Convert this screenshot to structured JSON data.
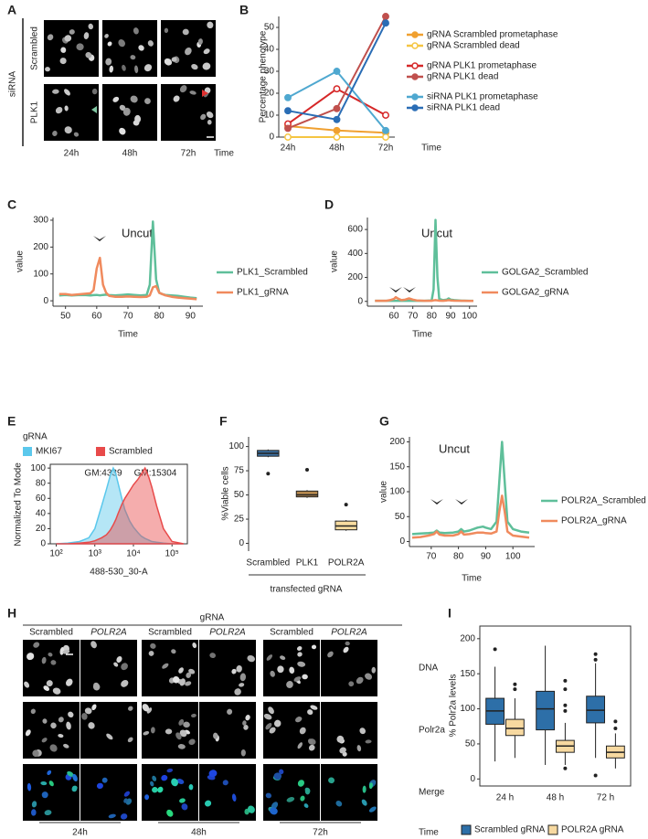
{
  "chart_data": [
    {
      "panel": "B",
      "type": "line",
      "categories": [
        "24h",
        "48h",
        "72h"
      ],
      "xlabel": "Time",
      "ylabel": "Percentage phenotype",
      "ylim": [
        0,
        55
      ],
      "yticks": [
        0,
        10,
        20,
        30,
        40,
        50
      ],
      "series": [
        {
          "name": "gRNA Scrambled prometaphase",
          "color": "#f0a030",
          "marker": "filled",
          "values": [
            5,
            3,
            2
          ]
        },
        {
          "name": "gRNA Scrambled dead",
          "color": "#f5c542",
          "marker": "open",
          "values": [
            0,
            0,
            0
          ]
        },
        {
          "name": "gRNA PLK1 prometaphase",
          "color": "#d62728",
          "marker": "open",
          "values": [
            6,
            22,
            10
          ]
        },
        {
          "name": "gRNA PLK1 dead",
          "color": "#c0504d",
          "marker": "filled",
          "values": [
            4,
            13,
            55
          ]
        },
        {
          "name": "siRNA PLK1 prometaphase",
          "color": "#4fa8d0",
          "marker": "filled",
          "values": [
            18,
            30,
            3
          ]
        },
        {
          "name": "siRNA PLK1 dead",
          "color": "#2a6db5",
          "marker": "filled",
          "values": [
            12,
            8,
            52
          ]
        }
      ]
    },
    {
      "panel": "C",
      "type": "line",
      "xlabel": "Time",
      "ylabel": "value",
      "annotations": [
        "Uncut"
      ],
      "xlim": [
        46,
        94
      ],
      "xticks": [
        50,
        60,
        70,
        80,
        90
      ],
      "ylim": [
        -20,
        310
      ],
      "yticks": [
        0,
        100,
        200,
        300
      ],
      "x": [
        48,
        50,
        52,
        54,
        56,
        58,
        59,
        60,
        61,
        62,
        63,
        64,
        66,
        68,
        70,
        72,
        74,
        76,
        77,
        78,
        79,
        80,
        81,
        82,
        84,
        86,
        88,
        90,
        92
      ],
      "series": [
        {
          "name": "PLK1_Scrambled",
          "color": "#5fbf9a",
          "values": [
            20,
            22,
            20,
            21,
            22,
            20,
            21,
            22,
            20,
            22,
            23,
            21,
            20,
            22,
            24,
            22,
            20,
            22,
            60,
            295,
            80,
            30,
            25,
            22,
            20,
            18,
            15,
            12,
            10
          ]
        },
        {
          "name": "PLK1_gRNA",
          "color": "#f08a5d",
          "values": [
            25,
            25,
            22,
            24,
            26,
            28,
            40,
            120,
            160,
            60,
            30,
            18,
            15,
            15,
            16,
            15,
            14,
            15,
            20,
            50,
            55,
            30,
            25,
            20,
            15,
            12,
            10,
            8,
            6
          ]
        }
      ]
    },
    {
      "panel": "D",
      "type": "line",
      "xlabel": "Time",
      "ylabel": "value",
      "annotations": [
        "Uncut"
      ],
      "xlim": [
        46,
        104
      ],
      "xticks": [
        60,
        70,
        80,
        90,
        100
      ],
      "ylim": [
        -40,
        700
      ],
      "yticks": [
        0,
        200,
        400,
        600
      ],
      "x": [
        50,
        52,
        54,
        56,
        58,
        60,
        61,
        62,
        64,
        66,
        68,
        70,
        72,
        76,
        80,
        81,
        82,
        83,
        84,
        86,
        88,
        89,
        90,
        92,
        96,
        100,
        102
      ],
      "series": [
        {
          "name": "GOLGA2_Scrambled",
          "color": "#5fbf9a",
          "values": [
            5,
            5,
            5,
            5,
            5,
            5,
            5,
            5,
            5,
            5,
            5,
            5,
            5,
            5,
            8,
            100,
            680,
            200,
            20,
            10,
            15,
            25,
            15,
            10,
            6,
            5,
            5
          ]
        },
        {
          "name": "GOLGA2_gRNA",
          "color": "#f08a5d",
          "values": [
            5,
            5,
            5,
            5,
            10,
            20,
            35,
            25,
            10,
            15,
            25,
            15,
            8,
            5,
            5,
            8,
            10,
            8,
            6,
            5,
            8,
            10,
            8,
            6,
            5,
            4,
            4
          ]
        }
      ]
    },
    {
      "panel": "E",
      "type": "area",
      "xscale": "log",
      "xlabel": "488-530_30-A",
      "ylabel": "Normalized To Mode",
      "legend_title": "gRNA",
      "annotations": [
        "GM:4339",
        "GM:15304"
      ],
      "xlim": [
        70,
        250000
      ],
      "xticks": [
        {
          "value": 100,
          "label": "10²"
        },
        {
          "value": 1000,
          "label": "10³"
        },
        {
          "value": 10000,
          "label": "10⁴"
        },
        {
          "value": 100000,
          "label": "10⁵"
        }
      ],
      "ylim": [
        0,
        105
      ],
      "yticks": [
        0,
        20,
        40,
        60,
        80,
        100
      ],
      "x": [
        100,
        200,
        400,
        700,
        1000,
        1500,
        2000,
        2500,
        3000,
        3500,
        4000,
        5000,
        6000,
        8000,
        10000,
        13000,
        16000,
        20000,
        25000,
        30000,
        40000,
        60000,
        100000,
        200000
      ],
      "series": [
        {
          "name": "MKI67",
          "color": "#5bc8ec",
          "values": [
            0,
            1,
            3,
            8,
            20,
            50,
            72,
            90,
            100,
            92,
            80,
            60,
            45,
            30,
            22,
            15,
            10,
            7,
            5,
            3,
            2,
            1,
            0,
            0
          ]
        },
        {
          "name": "Scrambled",
          "color": "#e84a4a",
          "values": [
            0,
            0,
            1,
            2,
            4,
            8,
            12,
            18,
            25,
            32,
            40,
            52,
            60,
            70,
            78,
            85,
            92,
            100,
            88,
            75,
            50,
            20,
            3,
            0
          ]
        }
      ]
    },
    {
      "panel": "F",
      "type": "box",
      "xlabel": "transfected gRNA",
      "ylabel": "%Viable cells",
      "categories": [
        "Scrambled",
        "PLK1",
        "POLR2A"
      ],
      "ylim": [
        -8,
        110
      ],
      "yticks": [
        0,
        25,
        50,
        75,
        100
      ],
      "boxes": [
        {
          "color": "#3b6fa0",
          "min": 89,
          "q1": 90,
          "median": 93,
          "q3": 96,
          "max": 97,
          "outliers": [
            72
          ]
        },
        {
          "color": "#b5884e",
          "min": 47,
          "q1": 48,
          "median": 50,
          "q3": 54,
          "max": 55,
          "outliers": [
            76
          ]
        },
        {
          "color": "#f7dca0",
          "min": 13,
          "q1": 14,
          "median": 18,
          "q3": 23,
          "max": 24,
          "outliers": [
            40
          ]
        }
      ]
    },
    {
      "panel": "G",
      "type": "line",
      "xlabel": "Time",
      "ylabel": "value",
      "annotations": [
        "Uncut"
      ],
      "xlim": [
        62,
        108
      ],
      "xticks": [
        70,
        80,
        90,
        100
      ],
      "ylim": [
        -10,
        210
      ],
      "yticks": [
        0,
        50,
        100,
        150,
        200
      ],
      "x": [
        63,
        66,
        69,
        71,
        72,
        73,
        75,
        78,
        80,
        81,
        82,
        84,
        87,
        89,
        90,
        92,
        94,
        95,
        96,
        97,
        98,
        100,
        103,
        106
      ],
      "series": [
        {
          "name": "POLR2A_Scrambled",
          "color": "#5fbf9a",
          "values": [
            15,
            16,
            17,
            18,
            22,
            18,
            17,
            18,
            20,
            25,
            20,
            22,
            28,
            30,
            28,
            25,
            40,
            120,
            200,
            120,
            40,
            25,
            20,
            18
          ]
        },
        {
          "name": "POLR2A_gRNA",
          "color": "#f08a5d",
          "values": [
            8,
            9,
            12,
            15,
            20,
            14,
            12,
            12,
            15,
            20,
            14,
            15,
            18,
            18,
            17,
            16,
            20,
            60,
            92,
            60,
            20,
            12,
            10,
            8
          ]
        }
      ]
    },
    {
      "panel": "I",
      "type": "box",
      "ylabel": "% Polr2a levels",
      "categories": [
        "24 h",
        "48 h",
        "72 h"
      ],
      "ylim": [
        -10,
        218
      ],
      "yticks": [
        0,
        50,
        100,
        150,
        200
      ],
      "series": [
        {
          "name": "Scrambled gRNA",
          "color": "#2d6fa8",
          "boxes": [
            {
              "min": 25,
              "q1": 78,
              "median": 97,
              "q3": 115,
              "max": 160,
              "outliers": [
                185
              ]
            },
            {
              "min": 20,
              "q1": 70,
              "median": 100,
              "q3": 125,
              "max": 190,
              "outliers": []
            },
            {
              "min": 30,
              "q1": 80,
              "median": 98,
              "q3": 118,
              "max": 165,
              "outliers": [
                170,
                178,
                5
              ]
            }
          ]
        },
        {
          "name": "POLR2A gRNA",
          "color": "#f7d9a0",
          "boxes": [
            {
              "min": 30,
              "q1": 62,
              "median": 72,
              "q3": 85,
              "max": 115,
              "outliers": [
                128,
                135
              ]
            },
            {
              "min": 20,
              "q1": 38,
              "median": 47,
              "q3": 55,
              "max": 80,
              "outliers": [
                97,
                105,
                128,
                140,
                15
              ]
            },
            {
              "min": 15,
              "q1": 30,
              "median": 38,
              "q3": 47,
              "max": 65,
              "outliers": [
                72,
                82
              ]
            }
          ]
        }
      ]
    }
  ],
  "image_panels": [
    {
      "panel": "A",
      "group": "siRNA",
      "rows": [
        "Scrambled",
        "PLK1"
      ],
      "columns": [
        "24h",
        "48h",
        "72h"
      ],
      "axis_label": "Time"
    },
    {
      "panel": "H",
      "group": "gRNA",
      "columns": [
        "Scrambled",
        "POLR2A",
        "Scrambled",
        "POLR2A",
        "Scrambled",
        "POLR2A"
      ],
      "rows": [
        "DNA",
        "Polr2a",
        "Merge"
      ],
      "times": [
        "24h",
        "48h",
        "72h"
      ],
      "axis_label": "Time"
    }
  ]
}
